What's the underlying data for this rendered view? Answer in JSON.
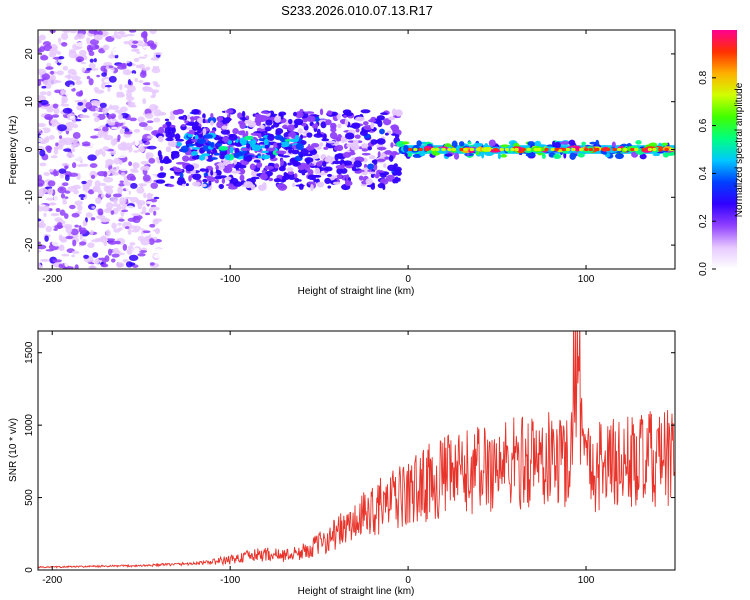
{
  "title": "S233.2026.010.07.13.R17",
  "chart_data": [
    {
      "type": "heatmap",
      "title": "S233.2026.010.07.13.R17",
      "xlabel": "Height of straight line (km)",
      "ylabel": "Frequency (Hz)",
      "xlim": [
        -208,
        150
      ],
      "ylim": [
        -25,
        25
      ],
      "xticks": [
        -200,
        -100,
        0,
        100
      ],
      "yticks": [
        -20,
        -10,
        0,
        10,
        20
      ],
      "colorbar": {
        "label": "Normalized spectral amplitude",
        "range": [
          0,
          1
        ],
        "ticks": [
          0.0,
          0.2,
          0.4,
          0.6,
          0.8
        ],
        "tick_labels": [
          "0.0",
          "0.2",
          "0.4",
          "0.6",
          "0.8"
        ],
        "colormap": [
          "#ffffff",
          "#e6c8ff",
          "#9040ff",
          "#3000ff",
          "#0040ff",
          "#00c8ff",
          "#00ff80",
          "#40ff00",
          "#d0ff00",
          "#ffb000",
          "#ff3000",
          "#ff0090"
        ]
      },
      "regions": [
        {
          "x": [
            -208,
            -140
          ],
          "y": [
            -25,
            25
          ],
          "amplitude": 0.1
        },
        {
          "x": [
            -140,
            -5
          ],
          "y": [
            -8,
            8
          ],
          "amplitude": 0.25
        },
        {
          "x": [
            -130,
            -60
          ],
          "y": [
            -2,
            3
          ],
          "amplitude": 0.4
        },
        {
          "x": [
            -5,
            150
          ],
          "y": [
            -1.5,
            1.5
          ],
          "amplitude": 0.5
        },
        {
          "x": [
            10,
            150
          ],
          "y": [
            -0.3,
            0.3
          ],
          "amplitude": 0.9
        }
      ]
    },
    {
      "type": "line",
      "xlabel": "Height of straight line (km)",
      "ylabel": "SNR (10 * v/v)",
      "xlim": [
        -208,
        150
      ],
      "ylim": [
        0,
        1650
      ],
      "xticks": [
        -200,
        -100,
        0,
        100
      ],
      "yticks": [
        0,
        500,
        1000,
        1500
      ],
      "color": "#e8332a",
      "series": [
        {
          "name": "SNR",
          "x": [
            -208,
            -200,
            -190,
            -180,
            -170,
            -160,
            -150,
            -140,
            -130,
            -120,
            -110,
            -100,
            -90,
            -80,
            -70,
            -60,
            -50,
            -40,
            -30,
            -20,
            -10,
            0,
            10,
            20,
            30,
            40,
            50,
            60,
            70,
            80,
            90,
            95,
            100,
            110,
            120,
            130,
            140,
            150
          ],
          "y": [
            20,
            20,
            22,
            24,
            26,
            28,
            30,
            35,
            40,
            45,
            55,
            70,
            95,
            110,
            100,
            120,
            180,
            260,
            320,
            420,
            470,
            520,
            600,
            640,
            660,
            700,
            720,
            740,
            760,
            760,
            760,
            1620,
            720,
            730,
            740,
            750,
            760,
            770
          ]
        }
      ]
    }
  ]
}
